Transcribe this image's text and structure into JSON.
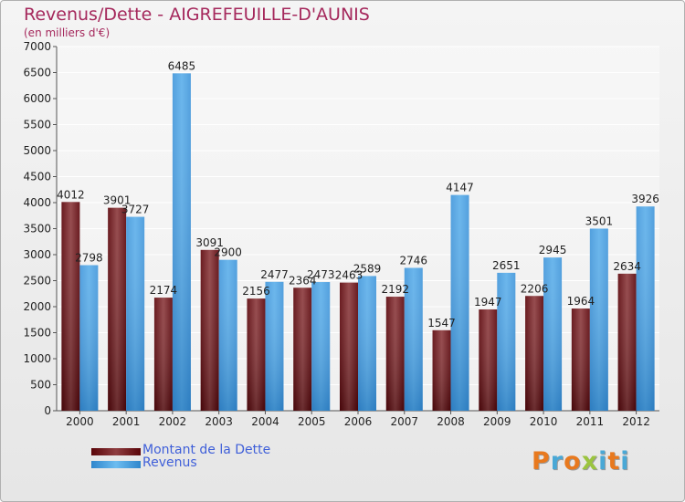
{
  "title": "Revenus/Dette - AIGREFEUILLE-D'AUNIS",
  "subtitle": "(en milliers d'€)",
  "logo": {
    "letters": [
      "P",
      "r",
      "o",
      "x",
      "i",
      "t",
      "i"
    ]
  },
  "colors": {
    "dette": "#6b0a10",
    "dette_light": "#8e3d40",
    "revenus": "#4a9ee0",
    "revenus_light": "#5aaeea",
    "title": "#a5285c",
    "legend_text": "#3f5fd9",
    "logo": [
      "#e8791e",
      "#49a8d6",
      "#e8791e",
      "#9bc43f",
      "#49a8d6",
      "#e8791e",
      "#49a8d6"
    ]
  },
  "legend": [
    {
      "name": "Montant de la Dette",
      "color": "#6b0a10"
    },
    {
      "name": "Revenus",
      "color": "#4a9ee0"
    }
  ],
  "chart_data": {
    "type": "bar",
    "title": "Revenus/Dette - AIGREFEUILLE-D'AUNIS",
    "ylabel": "(en milliers d'€)",
    "ylim": [
      0,
      7000
    ],
    "yticks": [
      0,
      500,
      1000,
      1500,
      2000,
      2500,
      3000,
      3500,
      4000,
      4500,
      5000,
      5500,
      6000,
      6500,
      7000
    ],
    "grid": true,
    "legend_position": "bottom-left",
    "categories": [
      "2000",
      "2001",
      "2002",
      "2003",
      "2004",
      "2005",
      "2006",
      "2007",
      "2008",
      "2009",
      "2010",
      "2011",
      "2012"
    ],
    "series": [
      {
        "name": "Montant de la Dette",
        "values": [
          4012,
          3901,
          2174,
          3091,
          2156,
          2364,
          2463,
          2192,
          1547,
          1947,
          2206,
          1964,
          2634
        ]
      },
      {
        "name": "Revenus",
        "values": [
          2798,
          3727,
          6485,
          2900,
          2477,
          2473,
          2589,
          2746,
          4147,
          2651,
          2945,
          3501,
          3926
        ]
      }
    ]
  }
}
